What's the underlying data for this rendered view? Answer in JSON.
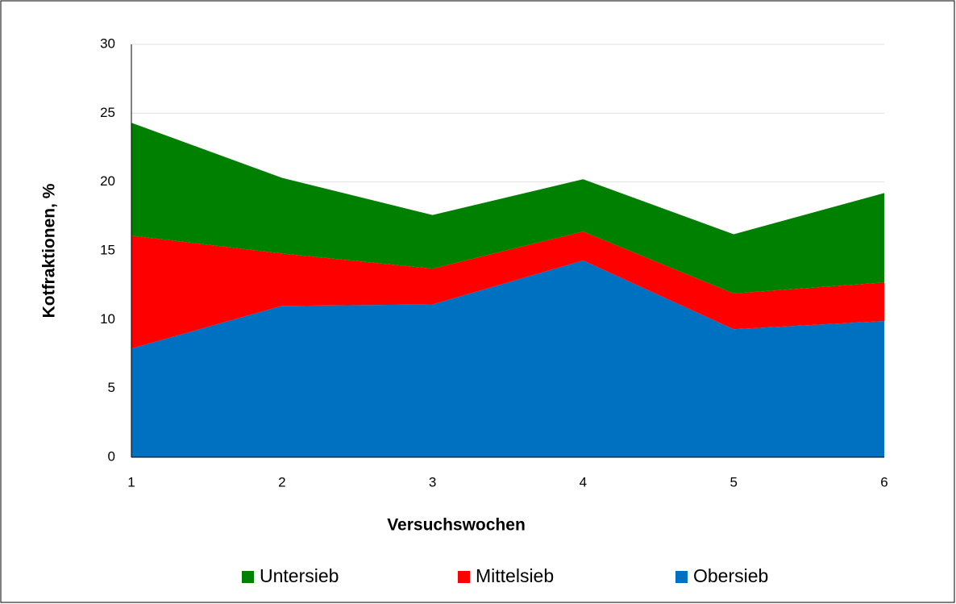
{
  "chart_data": {
    "type": "stacked_area",
    "x_label": "Versuchswochen",
    "y_label": "Kotfraktionen, %",
    "x": [
      1,
      2,
      3,
      4,
      5,
      6
    ],
    "xlim": [
      1,
      6
    ],
    "xticks": [
      1,
      2,
      3,
      4,
      5,
      6
    ],
    "ylim": [
      0,
      30
    ],
    "yticks": [
      0,
      5,
      10,
      15,
      20,
      25,
      30
    ],
    "grid": true,
    "legend": "bottom",
    "series": [
      {
        "name": "Obersieb",
        "color": "#0070c0",
        "values": [
          7.9,
          11.0,
          11.1,
          14.3,
          9.3,
          9.9
        ]
      },
      {
        "name": "Mittelsieb",
        "color": "#ff0000",
        "values": [
          8.2,
          3.8,
          2.6,
          2.1,
          2.6,
          2.8
        ]
      },
      {
        "name": "Untersieb",
        "color": "#008000",
        "values": [
          8.2,
          5.5,
          3.9,
          3.8,
          4.3,
          6.5
        ]
      }
    ]
  }
}
